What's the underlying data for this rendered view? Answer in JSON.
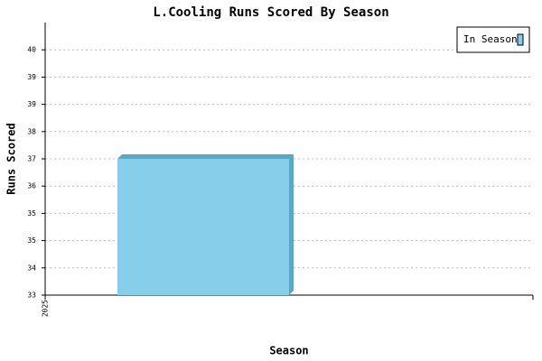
{
  "chart_data": {
    "type": "bar",
    "title": "L.Cooling Runs Scored By Season",
    "x_label": "Season",
    "y_label": "Runs Scored",
    "categories": [
      "2025"
    ],
    "series": [
      {
        "name": "In Season",
        "color": "#87ceeb",
        "values": [
          37
        ]
      }
    ],
    "ylim": [
      33,
      41
    ],
    "yticks": [
      33,
      {
        "value": 33.8,
        "label": "34"
      },
      {
        "value": 34.6,
        "label": "35"
      },
      {
        "value": 35.4,
        "label": "35"
      },
      {
        "value": 36.2,
        "label": "36"
      },
      37,
      {
        "value": 37.8,
        "label": "38"
      },
      {
        "value": 38.6,
        "label": "39"
      },
      {
        "value": 39.4,
        "label": "39"
      },
      {
        "value": 40.2,
        "label": "40"
      }
    ],
    "grid": true,
    "legend": "top-right"
  }
}
